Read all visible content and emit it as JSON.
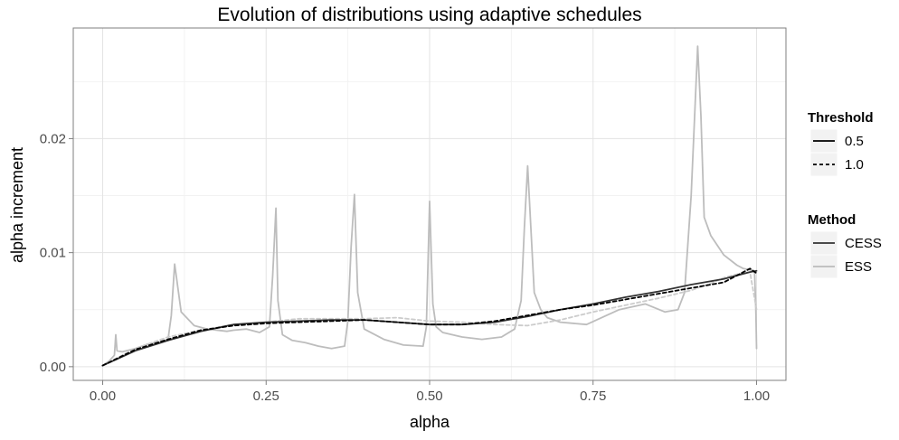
{
  "chart_data": {
    "type": "line",
    "title": "Evolution of distributions using adaptive schedules",
    "xlabel": "alpha",
    "ylabel": "alpha increment",
    "xlim": [
      -0.045,
      1.045
    ],
    "ylim": [
      -0.0012,
      0.0297
    ],
    "x_ticks": [
      0.0,
      0.25,
      0.5,
      0.75,
      1.0
    ],
    "x_tick_labels": [
      "0.00",
      "0.25",
      "0.50",
      "0.75",
      "1.00"
    ],
    "y_ticks": [
      0.0,
      0.01,
      0.02
    ],
    "y_tick_labels": [
      "0.00",
      "0.01",
      "0.02"
    ],
    "grid": true,
    "legend_position": "right",
    "legends": [
      {
        "title": "Threshold",
        "entries": [
          {
            "label": "0.5",
            "style": "solid"
          },
          {
            "label": "1.0",
            "style": "dashed"
          }
        ]
      },
      {
        "title": "Method",
        "entries": [
          {
            "label": "CESS",
            "color": "#333333"
          },
          {
            "label": "ESS",
            "color": "#bbbbbb"
          }
        ]
      }
    ],
    "colors": {
      "CESS": "#333333",
      "ESS": "#bbbbbb"
    },
    "series": [
      {
        "method": "ESS",
        "threshold": "0.5",
        "color": "#bdbdbd",
        "dash": "solid",
        "x": [
          0.0,
          0.01,
          0.018,
          0.02,
          0.022,
          0.03,
          0.05,
          0.07,
          0.09,
          0.1,
          0.105,
          0.11,
          0.12,
          0.14,
          0.16,
          0.19,
          0.2,
          0.22,
          0.24,
          0.255,
          0.26,
          0.265,
          0.268,
          0.275,
          0.29,
          0.31,
          0.33,
          0.35,
          0.37,
          0.375,
          0.38,
          0.385,
          0.39,
          0.4,
          0.43,
          0.46,
          0.49,
          0.495,
          0.5,
          0.505,
          0.51,
          0.52,
          0.55,
          0.58,
          0.61,
          0.63,
          0.64,
          0.645,
          0.65,
          0.66,
          0.67,
          0.68,
          0.7,
          0.74,
          0.79,
          0.83,
          0.86,
          0.88,
          0.89,
          0.9,
          0.91,
          0.915,
          0.92,
          0.93,
          0.95,
          0.97,
          0.98,
          0.99,
          0.997,
          0.999,
          1.0
        ],
        "y": [
          0.0001,
          0.0005,
          0.001,
          0.0028,
          0.0014,
          0.0013,
          0.0016,
          0.002,
          0.0022,
          0.0024,
          0.0045,
          0.009,
          0.0048,
          0.0036,
          0.0033,
          0.0031,
          0.0032,
          0.0033,
          0.003,
          0.0035,
          0.008,
          0.0139,
          0.0058,
          0.0028,
          0.0023,
          0.0021,
          0.0018,
          0.0016,
          0.0018,
          0.004,
          0.0105,
          0.0151,
          0.0065,
          0.0033,
          0.0024,
          0.0019,
          0.0018,
          0.0035,
          0.0145,
          0.0055,
          0.0035,
          0.003,
          0.0026,
          0.0024,
          0.0026,
          0.0033,
          0.0058,
          0.0122,
          0.0176,
          0.0065,
          0.005,
          0.0043,
          0.0039,
          0.0037,
          0.005,
          0.0055,
          0.0048,
          0.005,
          0.0065,
          0.015,
          0.0281,
          0.022,
          0.0131,
          0.0115,
          0.0098,
          0.0089,
          0.0086,
          0.0085,
          0.0083,
          0.005,
          0.0016
        ]
      },
      {
        "method": "ESS",
        "threshold": "1.0",
        "color": "#cccccc",
        "dash": "dashed",
        "x": [
          0.0,
          0.05,
          0.1,
          0.15,
          0.2,
          0.25,
          0.3,
          0.35,
          0.4,
          0.45,
          0.5,
          0.55,
          0.6,
          0.65,
          0.7,
          0.75,
          0.8,
          0.85,
          0.9,
          0.93,
          0.95,
          0.97,
          0.99,
          1.0
        ],
        "y": [
          0.0001,
          0.0016,
          0.0026,
          0.0032,
          0.0037,
          0.0039,
          0.0042,
          0.0042,
          0.0042,
          0.0043,
          0.004,
          0.0039,
          0.0037,
          0.0036,
          0.0041,
          0.0048,
          0.0054,
          0.006,
          0.0067,
          0.0073,
          0.0078,
          0.0081,
          0.0083,
          0.005
        ]
      },
      {
        "method": "CESS",
        "threshold": "0.5",
        "color": "#333333",
        "dash": "solid",
        "x": [
          0.0,
          0.05,
          0.1,
          0.15,
          0.2,
          0.25,
          0.3,
          0.35,
          0.4,
          0.45,
          0.5,
          0.55,
          0.6,
          0.65,
          0.7,
          0.75,
          0.8,
          0.85,
          0.9,
          0.95,
          0.99,
          1.0
        ],
        "y": [
          0.0001,
          0.0014,
          0.0023,
          0.0031,
          0.0037,
          0.0039,
          0.004,
          0.0041,
          0.0041,
          0.0039,
          0.0037,
          0.0037,
          0.0039,
          0.0044,
          0.005,
          0.0055,
          0.0061,
          0.0066,
          0.0072,
          0.0077,
          0.0083,
          0.0084
        ]
      },
      {
        "method": "CESS",
        "threshold": "1.0",
        "color": "#000000",
        "dash": "dashed",
        "x": [
          0.0,
          0.05,
          0.1,
          0.15,
          0.2,
          0.25,
          0.3,
          0.35,
          0.4,
          0.45,
          0.5,
          0.55,
          0.6,
          0.65,
          0.7,
          0.75,
          0.8,
          0.85,
          0.9,
          0.95,
          0.99,
          1.0
        ],
        "y": [
          0.0001,
          0.0015,
          0.0024,
          0.0032,
          0.0036,
          0.0038,
          0.0039,
          0.004,
          0.0041,
          0.0039,
          0.0037,
          0.0037,
          0.004,
          0.0045,
          0.005,
          0.0054,
          0.0059,
          0.0064,
          0.0069,
          0.0074,
          0.0086,
          0.0082
        ]
      }
    ]
  }
}
